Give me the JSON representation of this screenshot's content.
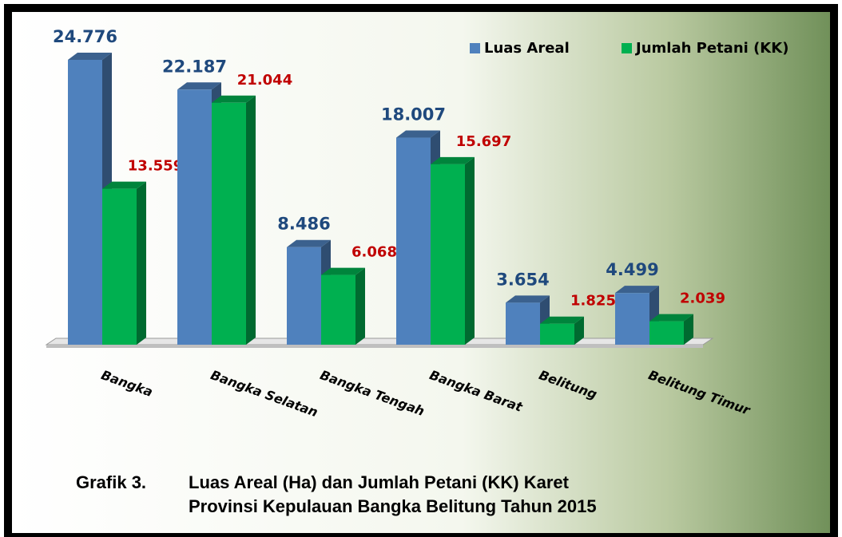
{
  "chart_data": {
    "type": "bar3d",
    "caption_label": "Grafik 3.",
    "title": [
      "Luas Areal (Ha) dan Jumlah Petani (KK) Karet",
      "Provinsi Kepulauan Bangka Belitung Tahun 2015"
    ],
    "categories": [
      "Bangka",
      "Bangka Selatan",
      "Bangka Tengah",
      "Bangka Barat",
      "Belitung",
      "Belitung Timur"
    ],
    "series": [
      {
        "name": "Luas Areal",
        "color": "#4f81bd",
        "label_color": "#1f497d",
        "values": [
          24776,
          22187,
          8486,
          18007,
          3654,
          4499
        ],
        "value_labels": [
          "24.776",
          "22.187",
          "8.486",
          "18.007",
          "3.654",
          "4.499"
        ]
      },
      {
        "name": "Jumlah Petani (KK)",
        "color": "#00b050",
        "label_color": "#c00000",
        "values": [
          13559,
          21044,
          6068,
          15697,
          1825,
          2039
        ],
        "value_labels": [
          "13.559",
          "21.044",
          "6.068",
          "15.697",
          "1.825",
          "2.039"
        ]
      }
    ],
    "legend": "top-right"
  }
}
